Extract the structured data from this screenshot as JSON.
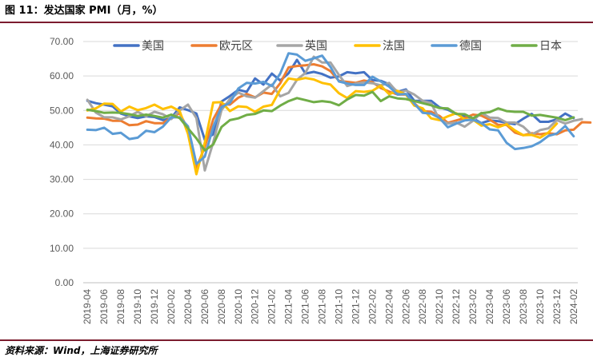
{
  "title": "图 11：发达国家 PMI（月，%）",
  "source": "资料来源：Wind，上海证券研究所",
  "chart_data": {
    "type": "line",
    "ylim": [
      0,
      70
    ],
    "y_ticks": [
      "0.00",
      "10.00",
      "20.00",
      "30.00",
      "40.00",
      "50.00",
      "60.00",
      "70.00"
    ],
    "x_tick_labels": [
      "2019-04",
      "2019-06",
      "2019-08",
      "2019-10",
      "2019-12",
      "2020-02",
      "2020-04",
      "2020-06",
      "2020-08",
      "2020-10",
      "2020-12",
      "2021-02",
      "2021-04",
      "2021-06",
      "2021-08",
      "2021-10",
      "2021-12",
      "2022-02",
      "2022-04",
      "2022-06",
      "2022-08",
      "2022-10",
      "2022-12",
      "2023-02",
      "2023-04",
      "2023-06",
      "2023-08",
      "2023-10",
      "2023-12",
      "2024-02"
    ],
    "legend_position": "top",
    "grid": "horizontal",
    "series": [
      {
        "name": "美国",
        "color": "#4472c4",
        "values": [
          52.8,
          52.1,
          51.7,
          51.2,
          49.1,
          48.3,
          47.8,
          48.3,
          48.1,
          47.2,
          47.8,
          50.9,
          50.1,
          49.1,
          41.5,
          43.1,
          52.6,
          54.2,
          56.0,
          55.4,
          59.3,
          57.5,
          60.7,
          58.7,
          60.8,
          64.7,
          60.7,
          61.2,
          60.6,
          59.5,
          59.9,
          61.1,
          60.8,
          61.1,
          58.8,
          58.6,
          57.6,
          55.4,
          56.1,
          52.8,
          52.8,
          52.8,
          50.9,
          50.2,
          49.0,
          48.4,
          47.7,
          46.3,
          47.1,
          46.9,
          46.4,
          46.0,
          47.6,
          49.0,
          46.7,
          46.7,
          47.4,
          49.1,
          47.8
        ]
      },
      {
        "name": "欧元区",
        "color": "#ed7d31",
        "values": [
          47.9,
          47.7,
          47.6,
          47.0,
          47.0,
          45.7,
          45.9,
          46.9,
          46.3,
          46.3,
          47.9,
          49.2,
          44.5,
          33.4,
          39.4,
          47.4,
          51.8,
          51.7,
          53.7,
          54.8,
          53.8,
          55.2,
          54.8,
          57.9,
          62.5,
          62.9,
          63.1,
          63.4,
          62.8,
          61.4,
          58.6,
          58.3,
          58.0,
          58.7,
          58.2,
          56.5,
          55.5,
          54.6,
          54.6,
          52.1,
          49.8,
          49.6,
          48.4,
          46.4,
          47.1,
          47.8,
          48.8,
          48.5,
          47.3,
          45.8,
          45.8,
          43.6,
          42.8,
          43.4,
          43.1,
          43.4,
          43.1,
          44.2,
          44.4,
          46.6,
          46.5
        ]
      },
      {
        "name": "英国",
        "color": "#a5a5a5",
        "values": [
          53.1,
          49.4,
          48.0,
          48.0,
          47.4,
          48.3,
          49.6,
          48.3,
          49.6,
          48.9,
          47.5,
          50.0,
          51.7,
          47.8,
          32.6,
          40.7,
          50.1,
          53.3,
          55.2,
          54.1,
          53.7,
          55.6,
          57.5,
          54.1,
          55.1,
          58.9,
          60.9,
          65.6,
          63.9,
          63.9,
          60.3,
          57.1,
          57.8,
          58.1,
          57.9,
          57.3,
          58.0,
          55.2,
          55.8,
          54.6,
          52.8,
          52.1,
          47.3,
          46.2,
          46.5,
          45.3,
          47.0,
          49.3,
          47.9,
          47.8,
          46.5,
          46.5,
          45.3,
          43.0,
          44.3,
          44.8,
          47.2,
          46.2,
          47.0,
          47.5
        ]
      },
      {
        "name": "法国",
        "color": "#ffc000",
        "values": [
          50.0,
          50.6,
          52.0,
          51.9,
          49.7,
          51.1,
          50.1,
          50.7,
          51.7,
          50.4,
          51.1,
          49.8,
          43.2,
          31.5,
          40.6,
          52.3,
          52.4,
          49.8,
          51.2,
          51.0,
          49.6,
          51.1,
          51.6,
          56.1,
          59.3,
          58.9,
          59.4,
          59.0,
          58.0,
          57.5,
          55.0,
          53.6,
          55.6,
          55.4,
          55.7,
          57.2,
          54.7,
          55.7,
          54.6,
          51.4,
          50.6,
          47.7,
          47.2,
          48.3,
          49.2,
          47.4,
          47.3,
          45.6,
          46.0,
          45.1,
          46.0,
          44.2,
          42.8,
          42.9,
          42.1,
          43.6,
          46.2
        ]
      },
      {
        "name": "德国",
        "color": "#5b9bd5",
        "values": [
          44.4,
          44.3,
          45.0,
          43.2,
          43.5,
          41.7,
          42.1,
          44.1,
          43.7,
          45.3,
          48.0,
          48.0,
          45.4,
          34.5,
          36.6,
          45.2,
          51.0,
          52.2,
          56.4,
          58.0,
          57.8,
          58.3,
          57.1,
          60.7,
          66.6,
          66.2,
          64.4,
          65.1,
          65.9,
          62.6,
          58.4,
          57.8,
          57.4,
          57.4,
          59.8,
          58.4,
          56.9,
          54.6,
          54.8,
          52.0,
          49.3,
          49.1,
          47.8,
          45.1,
          46.2,
          47.1,
          47.3,
          46.3,
          44.5,
          44.2,
          40.6,
          38.8,
          39.1,
          39.6,
          40.8,
          42.6,
          43.3,
          45.5,
          42.5
        ]
      },
      {
        "name": "日本",
        "color": "#70ad47",
        "values": [
          50.2,
          49.8,
          49.3,
          49.4,
          49.3,
          48.9,
          48.4,
          48.8,
          48.4,
          47.9,
          48.8,
          47.8,
          44.8,
          41.9,
          38.4,
          40.1,
          45.2,
          47.2,
          47.7,
          48.7,
          49.0,
          50.0,
          49.8,
          51.4,
          52.7,
          53.6,
          53.0,
          52.4,
          52.7,
          52.4,
          51.5,
          53.2,
          54.5,
          54.3,
          55.4,
          52.7,
          54.1,
          53.5,
          53.3,
          52.7,
          52.1,
          51.5,
          50.7,
          50.6,
          49.0,
          48.9,
          47.7,
          49.2,
          49.5,
          50.6,
          49.8,
          49.6,
          49.6,
          48.5,
          48.7,
          48.3,
          47.9,
          47.2,
          48.0
        ]
      }
    ]
  }
}
